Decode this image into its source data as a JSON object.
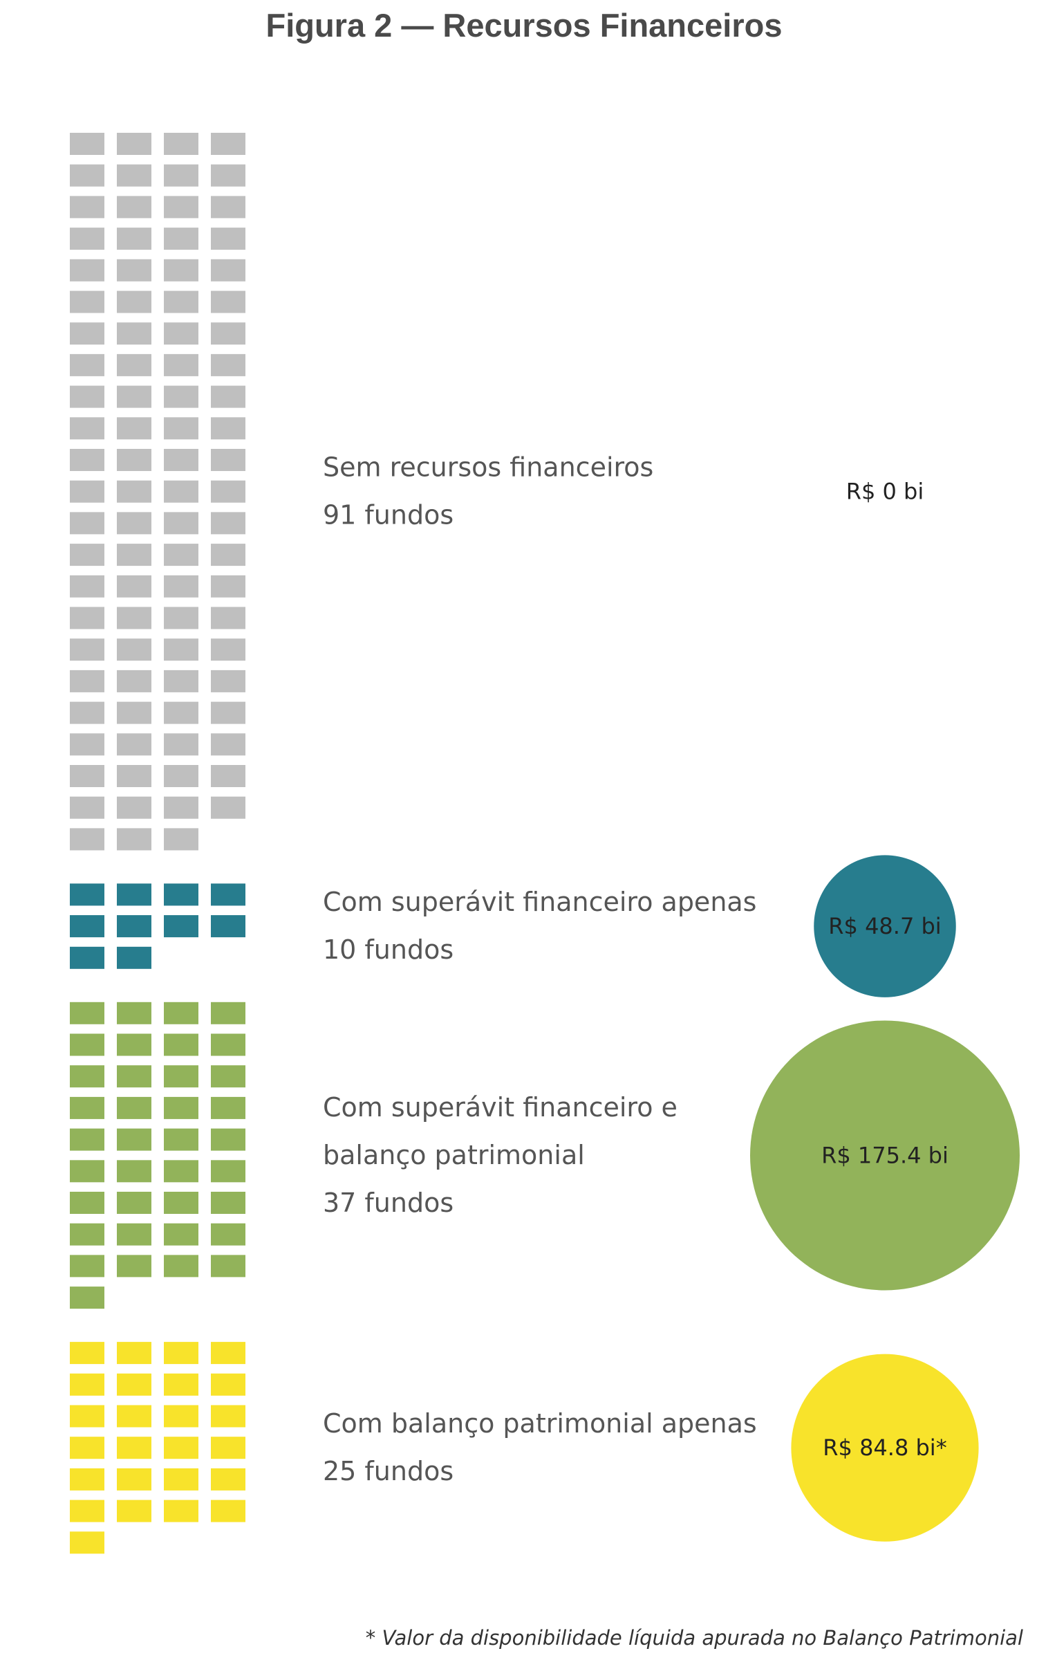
{
  "title": "Figura 2 — Recursos Financeiros",
  "footnote": "* Valor da disponibilidade líquida apurada no Balanço Patrimonial",
  "chart_data": {
    "type": "waffle",
    "unit": "fundos",
    "columns": 4,
    "groups": [
      {
        "lines": [
          "Sem recursos financeiros",
          "91 fundos"
        ],
        "count": 91,
        "value_bi": 0,
        "value_label": "R$ 0 bi",
        "color": "#bfbfbf"
      },
      {
        "lines": [
          "Com superávit financeiro apenas",
          "10 fundos"
        ],
        "count": 10,
        "value_bi": 48.7,
        "value_label": "R$ 48.7 bi",
        "color": "#277d8e"
      },
      {
        "lines": [
          "Com superávit financeiro e",
          "balanço patrimonial",
          "37 fundos"
        ],
        "count": 37,
        "value_bi": 175.4,
        "value_label": "R$ 175.4 bi",
        "color": "#92b35a"
      },
      {
        "lines": [
          "Com balanço patrimonial apenas",
          "25 fundos"
        ],
        "count": 25,
        "value_bi": 84.8,
        "value_label": "R$ 84.8 bi*",
        "color": "#f8e32b"
      }
    ]
  }
}
